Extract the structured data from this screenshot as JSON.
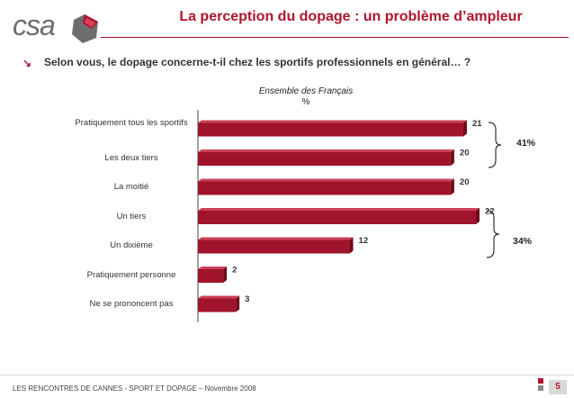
{
  "header": {
    "logo_text": "csa",
    "title": "La perception du dopage : un problème d’ampleur"
  },
  "question": "Selon vous, le dopage concerne-t-il chez les sportifs professionnels en général… ?",
  "subtitle_1": "Ensemble des Français",
  "subtitle_2": "%",
  "colors": {
    "accent": "#b0162c",
    "bar": "#a0142b",
    "bar_dark": "#6f0c1c"
  },
  "chart_data": {
    "type": "bar",
    "orientation": "horizontal",
    "categories": [
      "Pratiquement tous les sportifs",
      "Les deux tiers",
      "La moitié",
      "Un tiers",
      "Un dixième",
      "Pratiquement personne",
      "Ne se prononcent pas"
    ],
    "values": [
      21,
      20,
      20,
      22,
      12,
      2,
      3
    ],
    "xlim": [
      0,
      22
    ],
    "grid": false,
    "groups": [
      {
        "label": "41%",
        "members": [
          "Pratiquement tous les sportifs",
          "Les deux tiers"
        ]
      },
      {
        "label": "34%",
        "members": [
          "Un tiers",
          "Un dixième"
        ]
      }
    ]
  },
  "footer": {
    "text": "LES RENCONTRES DE CANNES - SPORT ET DOPAGE – Novembre 2008",
    "page": "5"
  }
}
